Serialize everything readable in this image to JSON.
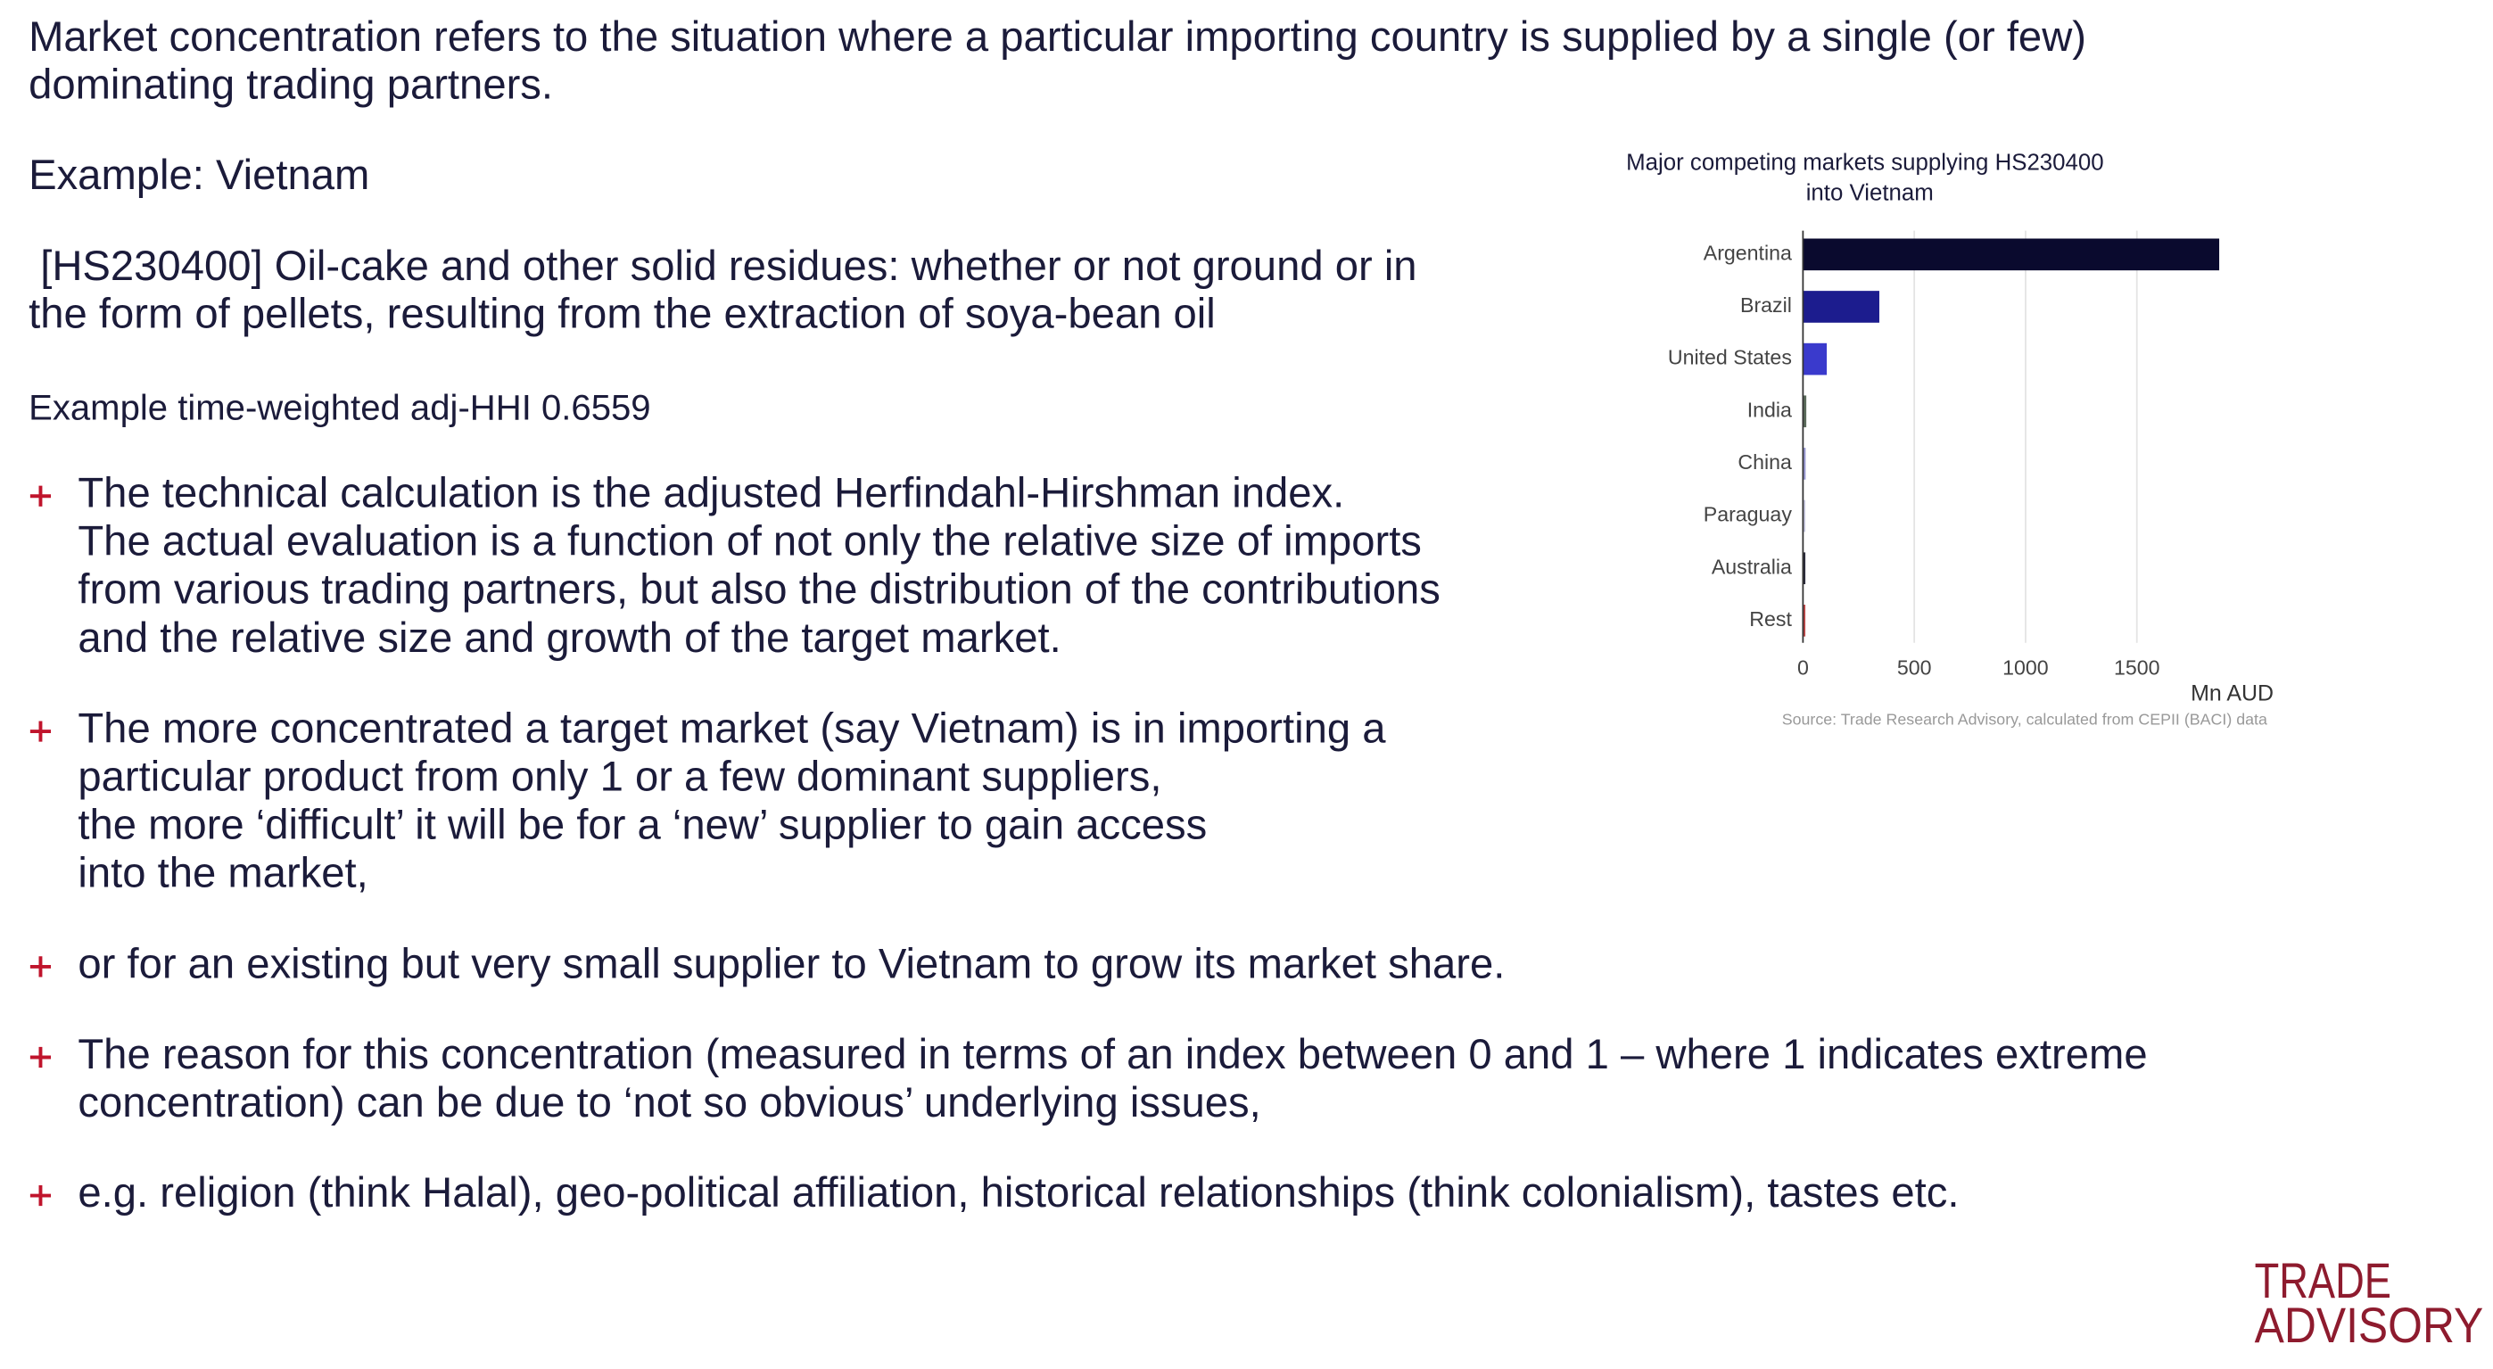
{
  "intro": [
    "Market concentration refers to the situation where a particular importing country is supplied by a single (or few)",
    "dominating trading partners."
  ],
  "example": "Example: Vietnam",
  "product": [
    " [HS230400] Oil-cake and other solid residues: whether or not ground or in",
    "the form of pellets, resulting from the extraction of soya-bean oil"
  ],
  "hhi": "Example time-weighted adj-HHI 0.6559",
  "bullets": [
    [
      "The technical calculation is the adjusted Herfindahl-Hirshman index.",
      "The actual evaluation is a function of not only the relative size of imports",
      "from various trading partners, but also the distribution of the contributions",
      "and the relative size and growth of the target market."
    ],
    [
      "The more concentrated a target market (say Vietnam) is in importing a",
      "particular product from only 1 or a few dominant suppliers,",
      "the more ‘difficult’ it will be for a ‘new’ supplier to gain access",
      "into the market,"
    ],
    [
      "or for an existing but very small supplier to Vietnam to grow its market share."
    ],
    [
      "The reason for this concentration (measured in terms of an index between 0 and 1 – where 1 indicates extreme",
      "concentration) can be due to ‘not so obvious’ underlying issues,"
    ],
    [
      "e.g. religion (think Halal), geo-political affiliation, historical relationships (think colonialism), tastes etc."
    ]
  ],
  "logo": [
    "TRADE",
    "ADVISORY"
  ],
  "chart_data": {
    "type": "bar",
    "orientation": "horizontal",
    "title": [
      "Major competing markets supplying HS230400",
      "into Vietnam"
    ],
    "categories": [
      "Argentina",
      "Brazil",
      "United States",
      "India",
      "China",
      "Paraguay",
      "Australia",
      "Rest"
    ],
    "values": [
      1870,
      343,
      107,
      15,
      12,
      5,
      3,
      8
    ],
    "colors": [
      "#0a0a2e",
      "#1c1c8e",
      "#3a3acc",
      "#5b6b5b",
      "#9a9ad4",
      "#c8c8e0",
      "#2a2a3a",
      "#c04848"
    ],
    "xlim": [
      0,
      2100
    ],
    "xticks": [
      0,
      500,
      1000,
      1500
    ],
    "x_label": "Mn AUD",
    "grid": true,
    "source": "Source: Trade Research Advisory, calculated from CEPII (BACI) data"
  }
}
